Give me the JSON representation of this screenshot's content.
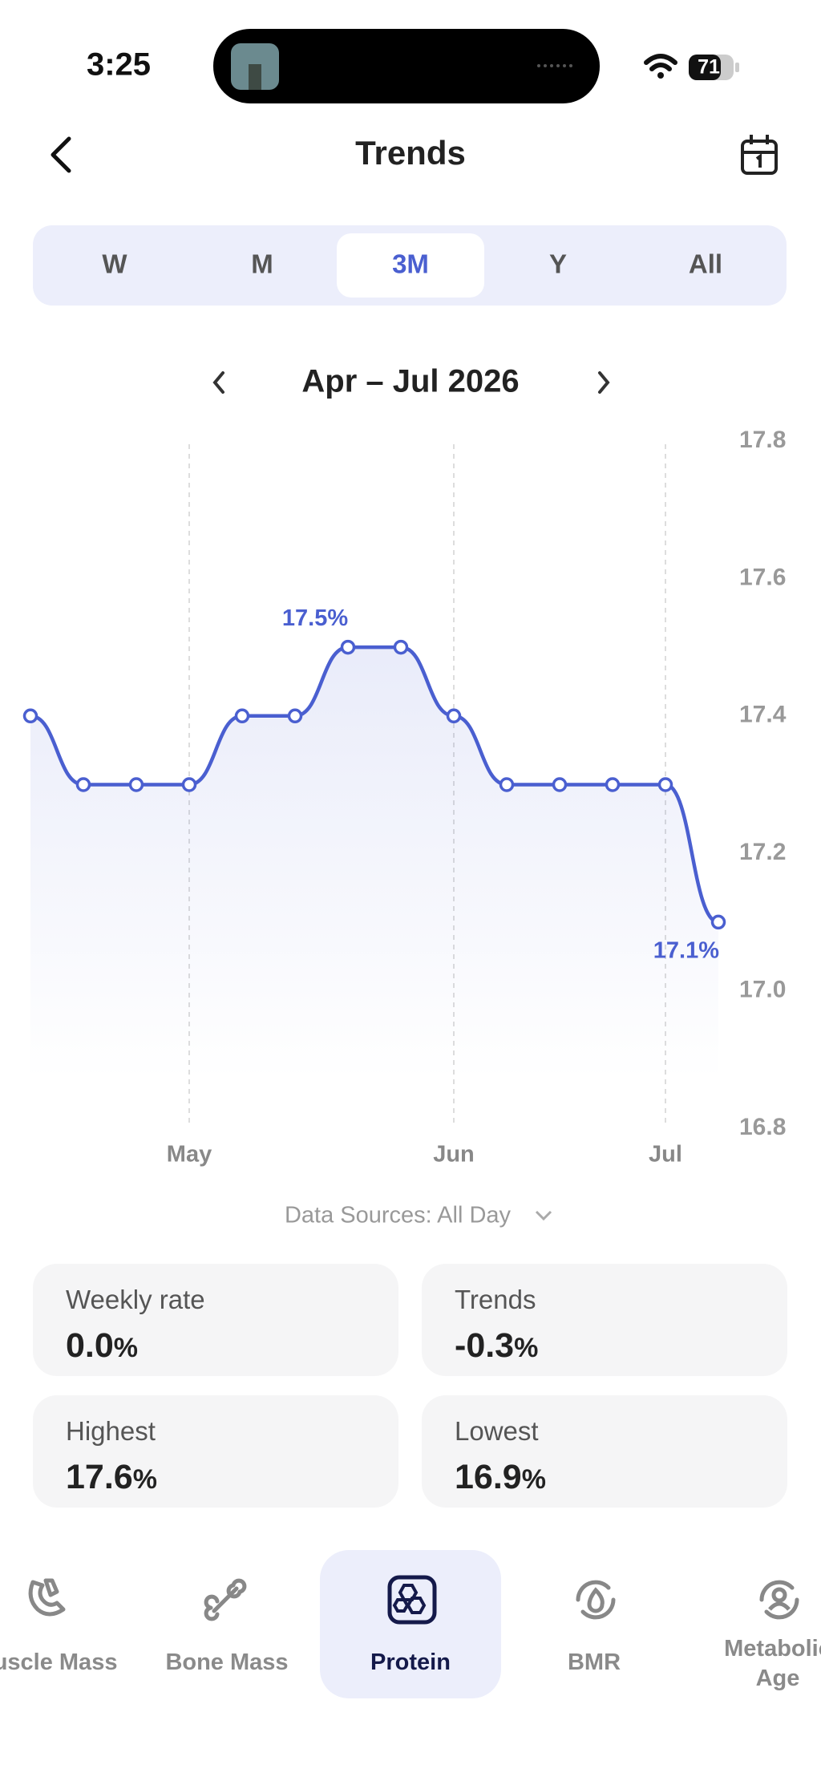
{
  "status_bar": {
    "time": "3:25",
    "battery": "71"
  },
  "header": {
    "title": "Trends"
  },
  "segments": {
    "options": [
      "W",
      "M",
      "3M",
      "Y",
      "All"
    ],
    "selected": "3M"
  },
  "date_range": "Apr – Jul 2026",
  "chart_data": {
    "type": "line",
    "categories": [
      null,
      null,
      null,
      "May",
      null,
      null,
      null,
      null,
      "Jun",
      null,
      null,
      null,
      "Jul",
      null
    ],
    "values": [
      17.4,
      17.3,
      17.3,
      17.3,
      17.4,
      17.4,
      17.5,
      17.5,
      17.4,
      17.3,
      17.3,
      17.3,
      17.3,
      17.1
    ],
    "value_labels": [
      null,
      null,
      null,
      null,
      null,
      null,
      "17.5%",
      null,
      null,
      null,
      null,
      null,
      null,
      "17.1%"
    ],
    "color": "#4a5fd0",
    "ylim": [
      16.8,
      17.8
    ],
    "yticks": [
      16.8,
      {
        "value": 17,
        "label": "17.0"
      },
      17.2,
      17.4,
      17.6,
      17.8
    ],
    "grid": true
  },
  "data_sources": "Data Sources: All Day",
  "stats": [
    {
      "label": "Weekly rate",
      "value": "0.0",
      "unit": "%"
    },
    {
      "label": "Trends",
      "value": "-0.3",
      "unit": "%"
    },
    {
      "label": "Highest",
      "value": "17.6",
      "unit": "%"
    },
    {
      "label": "Lowest",
      "value": "16.9",
      "unit": "%"
    }
  ],
  "tabs": {
    "items": [
      "Muscle Mass",
      "Bone Mass",
      "Protein",
      "BMR",
      "Metabolic Age"
    ],
    "selected": "Protein"
  }
}
